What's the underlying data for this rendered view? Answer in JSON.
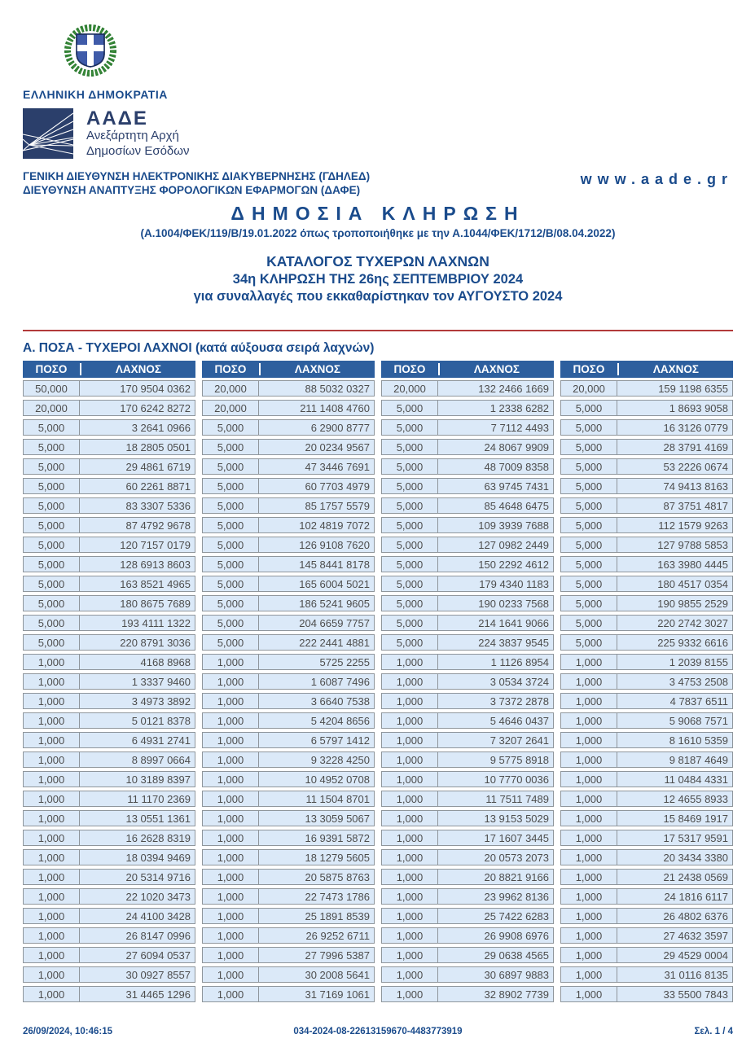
{
  "header": {
    "republic": "ΕΛΛΗΝΙΚΗ ΔΗΜΟΚΡΑΤΙΑ",
    "aade_acronym": "ΑΑΔΕ",
    "aade_sub1": "Ανεξάρτητη Αρχή",
    "aade_sub2": "Δημοσίων Εσόδων",
    "dept_line1": "ΓΕΝΙΚΗ ΔΙΕΥΘΥΝΣΗ ΗΛΕΚΤΡΟΝΙΚΗΣ ΔΙΑΚΥΒΕΡΝΗΣΗΣ (ΓΔΗΛΕΔ)",
    "dept_line2": "ΔΙΕΥΘΥΝΣΗ ΑΝΑΠΤΥΞΗΣ ΦΟΡΟΛΟΓΙΚΩΝ ΕΦΑΡΜΟΓΩΝ (ΔΑΦΕ)",
    "website": "www.aade.gr"
  },
  "title": {
    "main": "ΔΗΜΟΣΙΑ ΚΛΗΡΩΣΗ",
    "legal": "(Α.1004/ΦΕΚ/119/Β/19.01.2022 όπως τροποποιήθηκε με την Α.1044/ΦΕΚ/1712/Β/08.04.2022)",
    "catalog": "ΚΑΤΑΛΟΓΟΣ ΤΥΧΕΡΩΝ ΛΑΧΝΩΝ",
    "draw": "34η ΚΛΗΡΩΣΗ ΤΗΣ 26ης ΣΕΠΤΕΜΒΡΙΟΥ 2024",
    "period": "για συναλλαγές που εκκαθαρίστηκαν τον ΑΥΓΟΥΣΤΟ 2024"
  },
  "section": {
    "title": "Α. ΠΟΣΑ - ΤΥΧΕΡΟΙ ΛΑΧΝΟΙ (κατά αύξουσα σειρά λαχνών)"
  },
  "table": {
    "header_amount": "ΠΟΣΟ",
    "header_number": "ΛΑΧΝΟΣ",
    "groups": [
      {
        "rows": [
          {
            "amount": "50,000",
            "number": "170 9504 0362"
          },
          {
            "amount": "20,000",
            "number": "170 6242 8272"
          },
          {
            "amount": "5,000",
            "number": "3 2641 0966"
          },
          {
            "amount": "5,000",
            "number": "18 2805 0501"
          },
          {
            "amount": "5,000",
            "number": "29 4861 6719"
          },
          {
            "amount": "5,000",
            "number": "60 2261 8871"
          },
          {
            "amount": "5,000",
            "number": "83 3307 5336"
          },
          {
            "amount": "5,000",
            "number": "87 4792 9678"
          },
          {
            "amount": "5,000",
            "number": "120 7157 0179"
          },
          {
            "amount": "5,000",
            "number": "128 6913 8603"
          },
          {
            "amount": "5,000",
            "number": "163 8521 4965"
          },
          {
            "amount": "5,000",
            "number": "180 8675 7689"
          },
          {
            "amount": "5,000",
            "number": "193 4111 1322"
          },
          {
            "amount": "5,000",
            "number": "220 8791 3036"
          },
          {
            "amount": "1,000",
            "number": "4168 8968"
          },
          {
            "amount": "1,000",
            "number": "1 3337 9460"
          },
          {
            "amount": "1,000",
            "number": "3 4973 3892"
          },
          {
            "amount": "1,000",
            "number": "5 0121 8378"
          },
          {
            "amount": "1,000",
            "number": "6 4931 2741"
          },
          {
            "amount": "1,000",
            "number": "8 8997 0664"
          },
          {
            "amount": "1,000",
            "number": "10 3189 8397"
          },
          {
            "amount": "1,000",
            "number": "11 1170 2369"
          },
          {
            "amount": "1,000",
            "number": "13 0551 1361"
          },
          {
            "amount": "1,000",
            "number": "16 2628 8319"
          },
          {
            "amount": "1,000",
            "number": "18 0394 9469"
          },
          {
            "amount": "1,000",
            "number": "20 5314 9716"
          },
          {
            "amount": "1,000",
            "number": "22 1020 3473"
          },
          {
            "amount": "1,000",
            "number": "24 4100 3428"
          },
          {
            "amount": "1,000",
            "number": "26 8147 0996"
          },
          {
            "amount": "1,000",
            "number": "27 6094 0537"
          },
          {
            "amount": "1,000",
            "number": "30 0927 8557"
          },
          {
            "amount": "1,000",
            "number": "31 4465 1296"
          }
        ]
      },
      {
        "rows": [
          {
            "amount": "20,000",
            "number": "88 5032 0327"
          },
          {
            "amount": "20,000",
            "number": "211 1408 4760"
          },
          {
            "amount": "5,000",
            "number": "6 2900 8777"
          },
          {
            "amount": "5,000",
            "number": "20 0234 9567"
          },
          {
            "amount": "5,000",
            "number": "47 3446 7691"
          },
          {
            "amount": "5,000",
            "number": "60 7703 4979"
          },
          {
            "amount": "5,000",
            "number": "85 1757 5579"
          },
          {
            "amount": "5,000",
            "number": "102 4819 7072"
          },
          {
            "amount": "5,000",
            "number": "126 9108 7620"
          },
          {
            "amount": "5,000",
            "number": "145 8441 8178"
          },
          {
            "amount": "5,000",
            "number": "165 6004 5021"
          },
          {
            "amount": "5,000",
            "number": "186 5241 9605"
          },
          {
            "amount": "5,000",
            "number": "204 6659 7757"
          },
          {
            "amount": "5,000",
            "number": "222 2441 4881"
          },
          {
            "amount": "1,000",
            "number": "5725 2255"
          },
          {
            "amount": "1,000",
            "number": "1 6087 7496"
          },
          {
            "amount": "1,000",
            "number": "3 6640 7538"
          },
          {
            "amount": "1,000",
            "number": "5 4204 8656"
          },
          {
            "amount": "1,000",
            "number": "6 5797 1412"
          },
          {
            "amount": "1,000",
            "number": "9 3228 4250"
          },
          {
            "amount": "1,000",
            "number": "10 4952 0708"
          },
          {
            "amount": "1,000",
            "number": "11 1504 8701"
          },
          {
            "amount": "1,000",
            "number": "13 3059 5067"
          },
          {
            "amount": "1,000",
            "number": "16 9391 5872"
          },
          {
            "amount": "1,000",
            "number": "18 1279 5605"
          },
          {
            "amount": "1,000",
            "number": "20 5875 8763"
          },
          {
            "amount": "1,000",
            "number": "22 7473 1786"
          },
          {
            "amount": "1,000",
            "number": "25 1891 8539"
          },
          {
            "amount": "1,000",
            "number": "26 9252 6711"
          },
          {
            "amount": "1,000",
            "number": "27 7996 5387"
          },
          {
            "amount": "1,000",
            "number": "30 2008 5641"
          },
          {
            "amount": "1,000",
            "number": "31 7169 1061"
          }
        ]
      },
      {
        "rows": [
          {
            "amount": "20,000",
            "number": "132 2466 1669"
          },
          {
            "amount": "5,000",
            "number": "1 2338 6282"
          },
          {
            "amount": "5,000",
            "number": "7 7112 4493"
          },
          {
            "amount": "5,000",
            "number": "24 8067 9909"
          },
          {
            "amount": "5,000",
            "number": "48 7009 8358"
          },
          {
            "amount": "5,000",
            "number": "63 9745 7431"
          },
          {
            "amount": "5,000",
            "number": "85 4648 6475"
          },
          {
            "amount": "5,000",
            "number": "109 3939 7688"
          },
          {
            "amount": "5,000",
            "number": "127 0982 2449"
          },
          {
            "amount": "5,000",
            "number": "150 2292 4612"
          },
          {
            "amount": "5,000",
            "number": "179 4340 1183"
          },
          {
            "amount": "5,000",
            "number": "190 0233 7568"
          },
          {
            "amount": "5,000",
            "number": "214 1641 9066"
          },
          {
            "amount": "5,000",
            "number": "224 3837 9545"
          },
          {
            "amount": "1,000",
            "number": "1 1126 8954"
          },
          {
            "amount": "1,000",
            "number": "3 0534 3724"
          },
          {
            "amount": "1,000",
            "number": "3 7372 2878"
          },
          {
            "amount": "1,000",
            "number": "5 4646 0437"
          },
          {
            "amount": "1,000",
            "number": "7 3207 2641"
          },
          {
            "amount": "1,000",
            "number": "9 5775 8918"
          },
          {
            "amount": "1,000",
            "number": "10 7770 0036"
          },
          {
            "amount": "1,000",
            "number": "11 7511 7489"
          },
          {
            "amount": "1,000",
            "number": "13 9153 5029"
          },
          {
            "amount": "1,000",
            "number": "17 1607 3445"
          },
          {
            "amount": "1,000",
            "number": "20 0573 2073"
          },
          {
            "amount": "1,000",
            "number": "20 8821 9166"
          },
          {
            "amount": "1,000",
            "number": "23 9962 8136"
          },
          {
            "amount": "1,000",
            "number": "25 7422 6283"
          },
          {
            "amount": "1,000",
            "number": "26 9908 6976"
          },
          {
            "amount": "1,000",
            "number": "29 0638 4565"
          },
          {
            "amount": "1,000",
            "number": "30 6897 9883"
          },
          {
            "amount": "1,000",
            "number": "32 8902 7739"
          }
        ]
      },
      {
        "rows": [
          {
            "amount": "20,000",
            "number": "159 1198 6355"
          },
          {
            "amount": "5,000",
            "number": "1 8693 9058"
          },
          {
            "amount": "5,000",
            "number": "16 3126 0779"
          },
          {
            "amount": "5,000",
            "number": "28 3791 4169"
          },
          {
            "amount": "5,000",
            "number": "53 2226 0674"
          },
          {
            "amount": "5,000",
            "number": "74 9413 8163"
          },
          {
            "amount": "5,000",
            "number": "87 3751 4817"
          },
          {
            "amount": "5,000",
            "number": "112 1579 9263"
          },
          {
            "amount": "5,000",
            "number": "127 9788 5853"
          },
          {
            "amount": "5,000",
            "number": "163 3980 4445"
          },
          {
            "amount": "5,000",
            "number": "180 4517 0354"
          },
          {
            "amount": "5,000",
            "number": "190 9855 2529"
          },
          {
            "amount": "5,000",
            "number": "220 2742 3027"
          },
          {
            "amount": "5,000",
            "number": "225 9332 6616"
          },
          {
            "amount": "1,000",
            "number": "1 2039 8155"
          },
          {
            "amount": "1,000",
            "number": "3 4753 2508"
          },
          {
            "amount": "1,000",
            "number": "4 7837 6511"
          },
          {
            "amount": "1,000",
            "number": "5 9068 7571"
          },
          {
            "amount": "1,000",
            "number": "8 1610 5359"
          },
          {
            "amount": "1,000",
            "number": "9 8187 4649"
          },
          {
            "amount": "1,000",
            "number": "11 0484 4331"
          },
          {
            "amount": "1,000",
            "number": "12 4655 8933"
          },
          {
            "amount": "1,000",
            "number": "15 8469 1917"
          },
          {
            "amount": "1,000",
            "number": "17 5317 9591"
          },
          {
            "amount": "1,000",
            "number": "20 3434 3380"
          },
          {
            "amount": "1,000",
            "number": "21 2438 0569"
          },
          {
            "amount": "1,000",
            "number": "24 1816 6117"
          },
          {
            "amount": "1,000",
            "number": "26 4802 6376"
          },
          {
            "amount": "1,000",
            "number": "27 4632 3597"
          },
          {
            "amount": "1,000",
            "number": "29 4529 0004"
          },
          {
            "amount": "1,000",
            "number": "31 0116 8135"
          },
          {
            "amount": "1,000",
            "number": "33 5500 7843"
          }
        ]
      }
    ]
  },
  "footer": {
    "datetime": "26/09/2024, 10:46:15",
    "code": "034-2024-08-22613159670-4483773919",
    "page": "Σελ. 1 / 4"
  },
  "colors": {
    "navy_text": "#1a4b8c",
    "table_header_bg": "#2d5f9e",
    "cell_bg": "#dbe9f8",
    "cell_border": "#8f969c",
    "cell_text": "#4d4d4d",
    "rule_red": "#b23a3a",
    "logo_navy": "#2b3f6b",
    "emblem_green": "#2e7d32",
    "emblem_shield_blue": "#3f5ba9"
  }
}
